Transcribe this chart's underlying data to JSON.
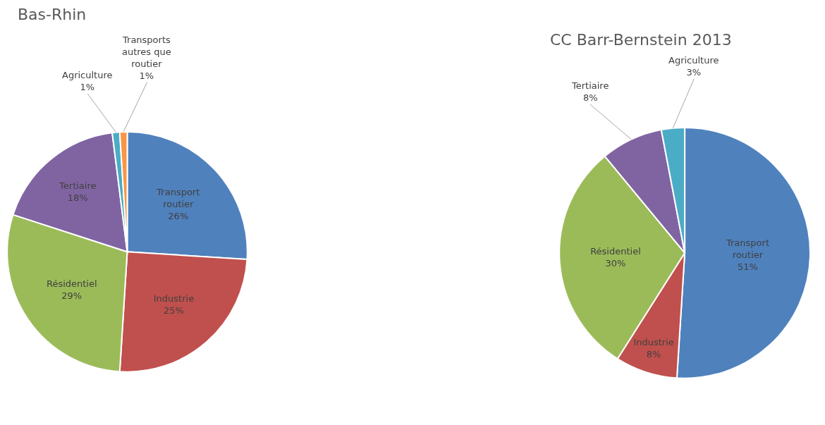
{
  "chart_data": [
    {
      "type": "pie",
      "title": "Bas-Rhin",
      "categories": [
        "Transport routier",
        "Industrie",
        "Résidentiel",
        "Tertiaire",
        "Agriculture",
        "Transports autres que routier"
      ],
      "values": [
        26,
        25,
        29,
        18,
        1,
        1
      ],
      "value_labels": [
        "26%",
        "25%",
        "29%",
        "18%",
        "1%",
        "1%"
      ],
      "colors": [
        "#4f81bd",
        "#c0504d",
        "#9bbb59",
        "#8064a2",
        "#4bacc6",
        "#f79646"
      ],
      "legend": false
    },
    {
      "type": "pie",
      "title": "CC Barr-Bernstein 2013",
      "categories": [
        "Transport routier",
        "Industrie",
        "Résidentiel",
        "Tertiaire",
        "Agriculture"
      ],
      "values": [
        51,
        8,
        30,
        8,
        3
      ],
      "value_labels": [
        "51%",
        "8%",
        "30%",
        "8%",
        "3%"
      ],
      "colors": [
        "#4f81bd",
        "#c0504d",
        "#9bbb59",
        "#8064a2",
        "#4bacc6"
      ],
      "legend": false
    }
  ]
}
